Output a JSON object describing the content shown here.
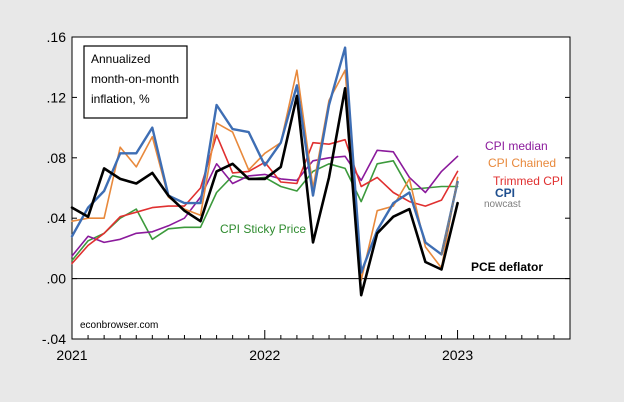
{
  "chart_data": {
    "type": "line",
    "annotation": [
      "Annualized",
      "month-on-month",
      "inflation, %"
    ],
    "watermark": "econbrowser.com",
    "x_ticks": [
      {
        "label": "2021",
        "value": 2021.0
      },
      {
        "label": "2022",
        "value": 2022.0
      },
      {
        "label": "2023",
        "value": 2023.0
      }
    ],
    "y_ticks": [
      {
        "label": ".16",
        "value": 0.16
      },
      {
        "label": ".12",
        "value": 0.12
      },
      {
        "label": ".08",
        "value": 0.08
      },
      {
        "label": ".04",
        "value": 0.04
      },
      {
        "label": ".00",
        "value": 0.0
      },
      {
        "label": "-.04",
        "value": -0.04
      }
    ],
    "xlim": [
      2021.0,
      2023.5833
    ],
    "ylim": [
      -0.04,
      0.16
    ],
    "zero_line": true,
    "series": [
      {
        "name": "CPI Sticky Price",
        "color": "#3c9a3c",
        "x": [
          2021.0,
          2021.0833,
          2021.1667,
          2021.25,
          2021.3333,
          2021.4167,
          2021.5,
          2021.5833,
          2021.6667,
          2021.75,
          2021.8333,
          2021.9167,
          2022.0,
          2022.0833,
          2022.1667,
          2022.25,
          2022.3333,
          2022.4167,
          2022.5,
          2022.5833,
          2022.6667,
          2022.75,
          2022.8333,
          2022.9167,
          2023.0
        ],
        "y": [
          0.012,
          0.025,
          0.03,
          0.04,
          0.046,
          0.026,
          0.033,
          0.034,
          0.034,
          0.057,
          0.068,
          0.066,
          0.067,
          0.061,
          0.058,
          0.071,
          0.076,
          0.073,
          0.051,
          0.076,
          0.078,
          0.059,
          0.06,
          0.061,
          0.061
        ]
      },
      {
        "name": "CPI median",
        "color": "#8b1a9c",
        "x": [
          2021.0,
          2021.0833,
          2021.1667,
          2021.25,
          2021.3333,
          2021.4167,
          2021.5,
          2021.5833,
          2021.6667,
          2021.75,
          2021.8333,
          2021.9167,
          2022.0,
          2022.0833,
          2022.1667,
          2022.25,
          2022.3333,
          2022.4167,
          2022.5,
          2022.5833,
          2022.6667,
          2022.75,
          2022.8333,
          2022.9167,
          2023.0
        ],
        "y": [
          0.015,
          0.028,
          0.024,
          0.026,
          0.03,
          0.031,
          0.035,
          0.04,
          0.054,
          0.076,
          0.063,
          0.068,
          0.069,
          0.066,
          0.065,
          0.078,
          0.08,
          0.081,
          0.065,
          0.085,
          0.084,
          0.067,
          0.057,
          0.071,
          0.081
        ]
      },
      {
        "name": "Trimmed CPI",
        "color": "#e03030",
        "x": [
          2021.0,
          2021.0833,
          2021.1667,
          2021.25,
          2021.3333,
          2021.4167,
          2021.5,
          2021.5833,
          2021.6667,
          2021.75,
          2021.8333,
          2021.9167,
          2022.0,
          2022.0833,
          2022.1667,
          2022.25,
          2022.3333,
          2022.4167,
          2022.5,
          2022.5833,
          2022.6667,
          2022.75,
          2022.8333,
          2022.9167,
          2023.0
        ],
        "y": [
          0.01,
          0.022,
          0.03,
          0.041,
          0.044,
          0.047,
          0.048,
          0.048,
          0.06,
          0.095,
          0.07,
          0.071,
          0.077,
          0.064,
          0.063,
          0.09,
          0.089,
          0.092,
          0.061,
          0.067,
          0.057,
          0.051,
          0.048,
          0.052,
          0.071
        ]
      },
      {
        "name": "CPI Chained",
        "color": "#e8893c",
        "x": [
          2021.0,
          2021.0833,
          2021.1667,
          2021.25,
          2021.3333,
          2021.4167,
          2021.5,
          2021.5833,
          2021.6667,
          2021.75,
          2021.8333,
          2021.9167,
          2022.0,
          2022.0833,
          2022.1667,
          2022.25,
          2022.3333,
          2022.4167,
          2022.5,
          2022.5833,
          2022.6667,
          2022.75,
          2022.8333,
          2022.9167,
          2023.0
        ],
        "y": [
          0.038,
          0.04,
          0.04,
          0.087,
          0.074,
          0.094,
          0.054,
          0.046,
          0.042,
          0.103,
          0.097,
          0.072,
          0.083,
          0.09,
          0.138,
          0.06,
          0.118,
          0.138,
          -0.001,
          0.045,
          0.048,
          0.066,
          0.021,
          0.007,
          0.067
        ]
      },
      {
        "name": "CPI",
        "color": "#3e6eb4",
        "x": [
          2021.0,
          2021.0833,
          2021.1667,
          2021.25,
          2021.3333,
          2021.4167,
          2021.5,
          2021.5833,
          2021.6667,
          2021.75,
          2021.8333,
          2021.9167,
          2022.0,
          2022.0833,
          2022.1667,
          2022.25,
          2022.3333,
          2022.4167,
          2022.5,
          2022.5833,
          2022.6667,
          2022.75,
          2022.8333,
          2022.9167,
          2023.0
        ],
        "y": [
          0.028,
          0.047,
          0.058,
          0.083,
          0.083,
          0.1,
          0.055,
          0.05,
          0.05,
          0.115,
          0.099,
          0.097,
          0.075,
          0.09,
          0.128,
          0.055,
          0.115,
          0.153,
          0.004,
          0.032,
          0.05,
          0.057,
          0.024,
          0.016,
          0.064
        ]
      },
      {
        "name": "PCE deflator",
        "color": "#000000",
        "x": [
          2021.0,
          2021.0833,
          2021.1667,
          2021.25,
          2021.3333,
          2021.4167,
          2021.5,
          2021.5833,
          2021.6667,
          2021.75,
          2021.8333,
          2021.9167,
          2022.0,
          2022.0833,
          2022.1667,
          2022.25,
          2022.3333,
          2022.4167,
          2022.5,
          2022.5833,
          2022.6667,
          2022.75,
          2022.8333,
          2022.9167,
          2023.0
        ],
        "y": [
          0.047,
          0.041,
          0.073,
          0.066,
          0.063,
          0.07,
          0.055,
          0.045,
          0.038,
          0.071,
          0.076,
          0.066,
          0.066,
          0.074,
          0.121,
          0.024,
          0.067,
          0.126,
          -0.011,
          0.03,
          0.041,
          0.046,
          0.011,
          0.006,
          0.05
        ]
      },
      {
        "name": "nowcast",
        "color": "#7f7f7f",
        "dash": true,
        "x": [
          2022.9167,
          2023.0
        ],
        "y": [
          0.016,
          0.064
        ]
      }
    ]
  }
}
